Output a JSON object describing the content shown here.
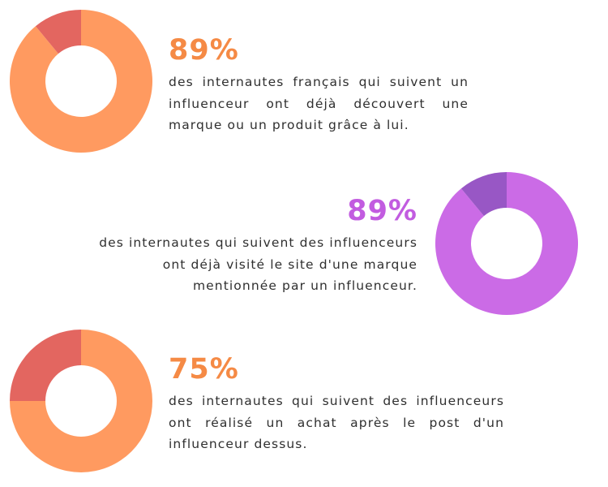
{
  "chart_data": [
    {
      "type": "pie",
      "value_label": "89%",
      "description": "des internautes français qui suivent un influenceur ont déjà découvert une marque ou un produit grâce à lui.",
      "slices": [
        {
          "value": 89,
          "color": "#FF9A60"
        },
        {
          "value": 11,
          "color": "#E36660"
        }
      ],
      "accent_color": "#F58A45"
    },
    {
      "type": "pie",
      "value_label": "89%",
      "description": "des internautes qui suivent des influenceurs ont déjà visité le site d'une marque mentionnée par un influenceur.",
      "slices": [
        {
          "value": 89,
          "color": "#CB6BE6"
        },
        {
          "value": 11,
          "color": "#9857C5"
        }
      ],
      "accent_color": "#C25CE0"
    },
    {
      "type": "pie",
      "value_label": "75%",
      "description": "des internautes qui suivent des influenceurs ont réalisé un achat après le post d'un influenceur dessus.",
      "slices": [
        {
          "value": 75,
          "color": "#FF9A60"
        },
        {
          "value": 25,
          "color": "#E36660"
        }
      ],
      "accent_color": "#F58A45"
    }
  ]
}
